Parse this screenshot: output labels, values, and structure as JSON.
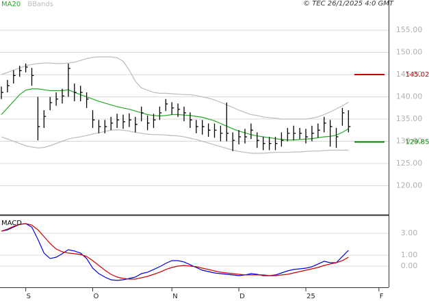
{
  "header": {
    "credit": "© TEC 26/1/2025 4:0 GMT"
  },
  "chart_data": [
    {
      "type": "ohlc",
      "categories": [
        null,
        null,
        null,
        null,
        "S",
        null,
        null,
        null,
        null,
        null,
        null,
        null,
        null,
        null,
        null,
        "O",
        null,
        null,
        null,
        null,
        null,
        null,
        null,
        null,
        null,
        null,
        null,
        null,
        "N",
        null,
        null,
        null,
        null,
        null,
        null,
        null,
        null,
        null,
        null,
        "D",
        null,
        null,
        null,
        null,
        null,
        null,
        null,
        null,
        null,
        null,
        "25",
        null,
        null,
        null,
        null,
        null,
        null,
        null,
        null,
        null,
        null,
        null,
        "F",
        null
      ],
      "high": [
        142.3,
        143.8,
        146.0,
        147.0,
        147.5,
        146.5,
        140.0,
        137.0,
        140.0,
        141.0,
        141.8,
        147.5,
        143.0,
        142.5,
        141.0,
        137.0,
        134.8,
        134.8,
        135.5,
        136.2,
        136.0,
        136.3,
        135.5,
        137.8,
        135.8,
        136.2,
        137.8,
        139.5,
        138.8,
        138.5,
        137.8,
        136.5,
        134.8,
        134.8,
        134.0,
        134.0,
        133.5,
        138.7,
        132.0,
        132.5,
        132.8,
        134.0,
        132.0,
        131.0,
        131.0,
        131.0,
        132.0,
        133.0,
        133.5,
        133.0,
        132.8,
        133.5,
        134.0,
        135.5,
        134.8,
        133.0,
        137.5,
        137.0,
        null,
        null,
        null,
        null,
        null,
        null
      ],
      "low": [
        139.5,
        141.0,
        143.0,
        144.5,
        145.5,
        142.5,
        130.2,
        133.0,
        137.0,
        138.0,
        138.5,
        140.0,
        139.0,
        139.0,
        137.5,
        133.0,
        131.8,
        131.8,
        132.5,
        133.0,
        132.8,
        133.2,
        132.0,
        134.5,
        132.5,
        133.0,
        134.8,
        136.8,
        136.0,
        135.5,
        134.5,
        133.0,
        131.8,
        131.5,
        131.0,
        130.8,
        130.0,
        130.0,
        127.8,
        129.3,
        129.5,
        130.5,
        128.5,
        128.0,
        128.0,
        128.0,
        128.8,
        130.0,
        130.2,
        130.5,
        129.5,
        130.0,
        130.8,
        132.0,
        128.8,
        128.5,
        133.5,
        132.0,
        null,
        null,
        null,
        null,
        null,
        null
      ],
      "close": [
        141.0,
        142.5,
        144.8,
        145.9,
        146.7,
        144.8,
        133.3,
        135.6,
        138.7,
        139.5,
        140.2,
        146.4,
        141.0,
        141.0,
        139.5,
        134.8,
        133.3,
        133.3,
        134.1,
        134.8,
        134.4,
        134.8,
        133.8,
        136.4,
        134.1,
        134.8,
        136.4,
        138.4,
        137.5,
        137.2,
        136.4,
        134.8,
        133.3,
        133.3,
        132.5,
        132.5,
        131.8,
        131.8,
        130.2,
        131.0,
        131.0,
        132.5,
        130.2,
        129.5,
        129.5,
        129.5,
        130.2,
        131.8,
        131.8,
        131.8,
        131.0,
        131.8,
        132.5,
        134.1,
        133.3,
        131.0,
        136.4,
        133.3,
        null,
        null,
        null,
        null,
        null,
        null
      ],
      "bar_color": "#000000",
      "series": [
        {
          "name": "MA20",
          "color": "#22aa22",
          "values": [
            136.0,
            137.5,
            139.0,
            140.5,
            141.5,
            141.8,
            141.8,
            141.6,
            141.4,
            141.4,
            141.4,
            141.6,
            141.0,
            140.5,
            140.0,
            139.5,
            139.0,
            138.6,
            138.2,
            137.8,
            137.5,
            137.2,
            136.8,
            136.4,
            136.0,
            135.8,
            135.7,
            135.8,
            136.0,
            136.0,
            135.9,
            135.8,
            135.6,
            135.4,
            135.0,
            134.6,
            134.0,
            133.4,
            132.8,
            132.3,
            131.9,
            131.5,
            131.2,
            131.0,
            130.8,
            130.6,
            130.4,
            130.3,
            130.3,
            130.4,
            130.5,
            130.6,
            130.8,
            131.0,
            131.1,
            131.4,
            132.0,
            132.8,
            null,
            null,
            null,
            null,
            null,
            null
          ]
        },
        {
          "name": "BBands",
          "color": "#bbbbbb",
          "upper": [
            145.0,
            145.5,
            146.0,
            146.5,
            147.0,
            147.3,
            147.5,
            147.6,
            147.6,
            147.5,
            147.5,
            147.6,
            147.8,
            148.2,
            148.6,
            148.9,
            149.0,
            149.0,
            149.0,
            148.8,
            148.0,
            146.0,
            143.5,
            142.0,
            141.5,
            141.0,
            140.8,
            140.8,
            140.7,
            140.6,
            140.5,
            140.5,
            140.3,
            140.0,
            139.7,
            139.3,
            138.8,
            138.2,
            137.6,
            137.0,
            136.5,
            136.0,
            135.8,
            135.5,
            135.3,
            135.2,
            135.0,
            135.0,
            135.0,
            135.0,
            135.0,
            135.2,
            135.5,
            136.0,
            136.6,
            137.3,
            138.0,
            138.8,
            null,
            null,
            null,
            null,
            null,
            null
          ],
          "lower": [
            131.0,
            130.5,
            130.0,
            129.5,
            129.0,
            128.7,
            128.5,
            128.6,
            129.0,
            129.5,
            130.0,
            130.5,
            130.8,
            131.0,
            131.3,
            131.6,
            131.9,
            132.2,
            132.5,
            132.6,
            132.5,
            132.3,
            132.0,
            131.8,
            131.6,
            131.5,
            131.5,
            131.4,
            131.3,
            131.2,
            131.0,
            130.7,
            130.4,
            130.0,
            129.6,
            129.2,
            128.8,
            128.4,
            128.0,
            127.7,
            127.5,
            127.3,
            127.3,
            127.3,
            127.4,
            127.5,
            127.5,
            127.5,
            127.6,
            127.6,
            127.7,
            127.8,
            127.8,
            127.9,
            128.0,
            128.0,
            128.0,
            128.0,
            null,
            null,
            null,
            null,
            null,
            null
          ]
        }
      ],
      "levels": [
        {
          "value": 145.02,
          "color": "#cc0000"
        },
        {
          "value": 129.85,
          "color": "#008800"
        }
      ],
      "ylim": [
        113.6,
        161.8
      ],
      "yticks": [
        {
          "value": 120,
          "label": "120.00"
        },
        {
          "value": 125,
          "label": "125.00"
        },
        {
          "value": 130,
          "label": "130.00"
        },
        {
          "value": 135,
          "label": "135.00"
        },
        {
          "value": 140,
          "label": "140.00"
        },
        {
          "value": 145,
          "label": "145.00"
        },
        {
          "value": 150,
          "label": "150.00"
        },
        {
          "value": 155,
          "label": "155.00"
        }
      ],
      "grid": true
    },
    {
      "type": "line",
      "categories": [
        null,
        null,
        null,
        null,
        "S",
        null,
        null,
        null,
        null,
        null,
        null,
        null,
        null,
        null,
        null,
        "O",
        null,
        null,
        null,
        null,
        null,
        null,
        null,
        null,
        null,
        null,
        null,
        null,
        "N",
        null,
        null,
        null,
        null,
        null,
        null,
        null,
        null,
        null,
        null,
        "D",
        null,
        null,
        null,
        null,
        null,
        null,
        null,
        null,
        null,
        null,
        "25",
        null,
        null,
        null,
        null,
        null,
        null,
        null,
        null,
        null,
        null,
        null,
        "F",
        null
      ],
      "label": "MACD",
      "series": [
        {
          "color": "#0000dd",
          "values": [
            3.19,
            3.31,
            3.56,
            3.81,
            3.88,
            3.56,
            2.44,
            1.19,
            0.69,
            0.81,
            1.13,
            1.5,
            1.38,
            1.19,
            0.69,
            -0.19,
            -0.69,
            -1.0,
            -1.25,
            -1.31,
            -1.25,
            -1.13,
            -1.0,
            -0.69,
            -0.56,
            -0.31,
            -0.06,
            0.25,
            0.5,
            0.5,
            0.38,
            0.13,
            -0.13,
            -0.38,
            -0.5,
            -0.63,
            -0.69,
            -0.75,
            -0.81,
            -0.88,
            -0.81,
            -0.69,
            -0.75,
            -0.88,
            -0.88,
            -0.81,
            -0.63,
            -0.44,
            -0.31,
            -0.25,
            -0.19,
            -0.06,
            0.19,
            0.44,
            0.31,
            0.31,
            0.88,
            1.44,
            null,
            null,
            null,
            null,
            null,
            null
          ]
        },
        {
          "color": "#cc0000",
          "values": [
            3.19,
            3.38,
            3.63,
            3.81,
            3.88,
            3.75,
            3.31,
            2.69,
            2.06,
            1.56,
            1.31,
            1.19,
            1.13,
            1.06,
            0.88,
            0.5,
            0.06,
            -0.38,
            -0.75,
            -1.0,
            -1.13,
            -1.19,
            -1.19,
            -1.06,
            -0.94,
            -0.75,
            -0.56,
            -0.31,
            -0.13,
            0,
            0.06,
            0,
            -0.06,
            -0.19,
            -0.31,
            -0.44,
            -0.56,
            -0.63,
            -0.69,
            -0.75,
            -0.81,
            -0.81,
            -0.81,
            -0.81,
            -0.88,
            -0.88,
            -0.81,
            -0.75,
            -0.63,
            -0.5,
            -0.38,
            -0.25,
            -0.13,
            0.06,
            0.19,
            0.31,
            0.5,
            0.81,
            null,
            null,
            null,
            null,
            null,
            null
          ]
        }
      ],
      "ylim": [
        -1.94,
        4.56
      ],
      "yticks": [
        {
          "value": 0,
          "label": "0.00"
        },
        {
          "value": 1,
          "label": "1.00"
        },
        {
          "value": 3,
          "label": "3.00"
        }
      ],
      "grid": true
    }
  ]
}
